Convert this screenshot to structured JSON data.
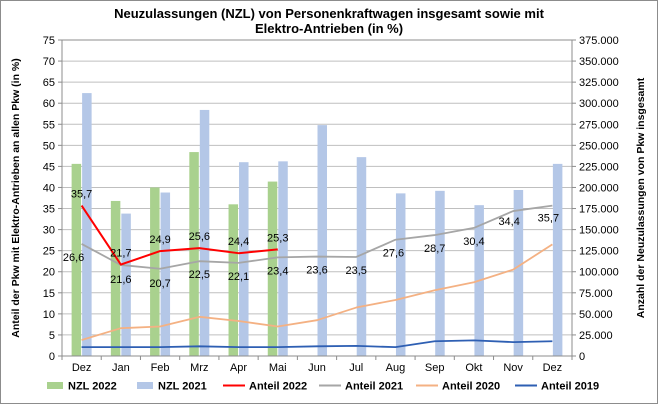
{
  "chart_data": {
    "type": "bar",
    "title": "Neuzulassungen (NZL) von Personenkraftwagen insgesamt sowie mit Elektro-Antrieben (in %)",
    "title_lines": [
      "Neuzulassungen (NZL) von Personenkraftwagen insgesamt sowie mit",
      "Elektro-Antrieben (in %)"
    ],
    "ylabel_left": "Anteil der Pkw mit Elektro-Antrieben an allen Pkw (in %)",
    "ylabel_right": "Anzahl der Neuzulassungen von Pkw insgesamt",
    "categories": [
      "Dez",
      "Jan",
      "Feb",
      "Mrz",
      "Apr",
      "Mai",
      "Jun",
      "Jul",
      "Aug",
      "Sep",
      "Okt",
      "Nov",
      "Dez"
    ],
    "ylim_left": [
      0,
      75
    ],
    "ylim_right": [
      0,
      375000
    ],
    "yticks_left": [
      "0",
      "5",
      "10",
      "15",
      "20",
      "25",
      "30",
      "35",
      "40",
      "45",
      "50",
      "55",
      "60",
      "65",
      "70",
      "75"
    ],
    "yticks_right": [
      "0",
      "25.000",
      "50.000",
      "75.000",
      "100.000",
      "125.000",
      "150.000",
      "175.000",
      "200.000",
      "225.000",
      "250.000",
      "275.000",
      "300.000",
      "325.000",
      "350.000",
      "375.000"
    ],
    "grid": true,
    "legend_position": "bottom",
    "series": [
      {
        "name": "NZL 2022",
        "kind": "bar",
        "axis": "right",
        "color": "#a9d18e",
        "values": [
          228000,
          184000,
          200000,
          242000,
          180000,
          207000,
          null,
          null,
          null,
          null,
          null,
          null,
          null
        ]
      },
      {
        "name": "NZL 2021",
        "kind": "bar",
        "axis": "right",
        "color": "#b4c7e7",
        "values": [
          312000,
          169000,
          194000,
          292000,
          230000,
          231000,
          274000,
          236000,
          193000,
          196000,
          179000,
          197000,
          228000
        ]
      },
      {
        "name": "Anteil 2022",
        "kind": "line",
        "axis": "left",
        "color": "#ff0000",
        "values": [
          35.7,
          21.7,
          24.9,
          25.6,
          24.4,
          25.3,
          null,
          null,
          null,
          null,
          null,
          null,
          null
        ],
        "labels": [
          "35,7",
          "21,7",
          "24,9",
          "25,6",
          "24,4",
          "25,3",
          "",
          "",
          "",
          "",
          "",
          "",
          ""
        ]
      },
      {
        "name": "Anteil 2021",
        "kind": "line",
        "axis": "left",
        "color": "#a6a6a6",
        "values": [
          26.6,
          21.6,
          20.7,
          22.5,
          22.1,
          23.4,
          23.6,
          23.5,
          27.6,
          28.7,
          30.4,
          34.4,
          35.7
        ],
        "labels": [
          "26,6",
          "21,6",
          "20,7",
          "22,5",
          "22,1",
          "23,4",
          "23,6",
          "23,5",
          "27,6",
          "28,7",
          "30,4",
          "34,4",
          "35,7"
        ]
      },
      {
        "name": "Anteil 2020",
        "kind": "line",
        "axis": "left",
        "color": "#f4b183",
        "values": [
          3.8,
          6.6,
          7.0,
          9.3,
          8.3,
          7.0,
          8.5,
          11.5,
          13.3,
          15.6,
          17.5,
          20.5,
          26.5
        ],
        "labels": []
      },
      {
        "name": "Anteil 2019",
        "kind": "line",
        "axis": "left",
        "color": "#2e5fb3",
        "values": [
          2.1,
          2.1,
          2.1,
          2.3,
          2.1,
          2.1,
          2.3,
          2.4,
          2.1,
          3.5,
          3.7,
          3.3,
          3.5
        ],
        "labels": []
      }
    ]
  }
}
